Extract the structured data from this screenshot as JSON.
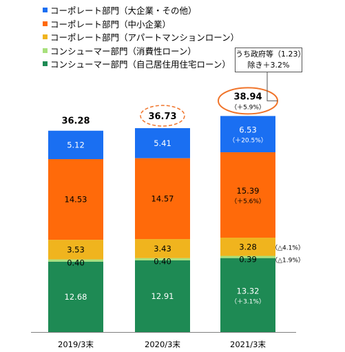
{
  "chart_data": {
    "type": "bar",
    "stacked": true,
    "categories": [
      "2019/3末",
      "2020/3末",
      "2021/3末"
    ],
    "series": [
      {
        "name": "コンシューマー部門（自己居住用住宅ローン）",
        "color": "#1e8a54",
        "values": [
          12.68,
          12.91,
          13.32
        ],
        "labels": [
          "12.68",
          "12.91",
          "13.32"
        ],
        "changes": [
          null,
          null,
          "（＋3.1%）"
        ]
      },
      {
        "name": "コンシューマー部門（消費性ローン）",
        "color": "#a8e07c",
        "values": [
          0.4,
          0.4,
          0.39
        ],
        "labels": [
          "0.40",
          "0.40",
          "0.39"
        ],
        "changes": [
          null,
          null,
          "（△1.9%）"
        ]
      },
      {
        "name": "コーポレート部門（アパートマンションローン）",
        "color": "#f0b41e",
        "values": [
          3.53,
          3.43,
          3.28
        ],
        "labels": [
          "3.53",
          "3.43",
          "3.28"
        ],
        "changes": [
          null,
          null,
          "（△4.1%）"
        ]
      },
      {
        "name": "コーポレート部門（中小企業）",
        "color": "#ff6a0a",
        "values": [
          14.53,
          14.57,
          15.39
        ],
        "labels": [
          "14.53",
          "14.57",
          "15.39"
        ],
        "changes": [
          null,
          null,
          "（＋5.6%）"
        ]
      },
      {
        "name": "コーポレート部門（大企業・その他）",
        "color": "#1a6ff2",
        "values": [
          5.12,
          5.41,
          6.53
        ],
        "labels": [
          "5.12",
          "5.41",
          "6.53"
        ],
        "changes": [
          null,
          null,
          "（＋20.5%）"
        ]
      }
    ],
    "totals": [
      "36.28",
      "36.73",
      "38.94"
    ],
    "total_changes": [
      null,
      null,
      "（＋5.9%）"
    ],
    "annotation": {
      "line1": "うち政府等（1.23）",
      "line2": "除き＋3.2%"
    },
    "highlight_color": "#f0742a",
    "legend_order": [
      4,
      3,
      2,
      1,
      0
    ],
    "ylim": [
      0,
      39
    ]
  }
}
